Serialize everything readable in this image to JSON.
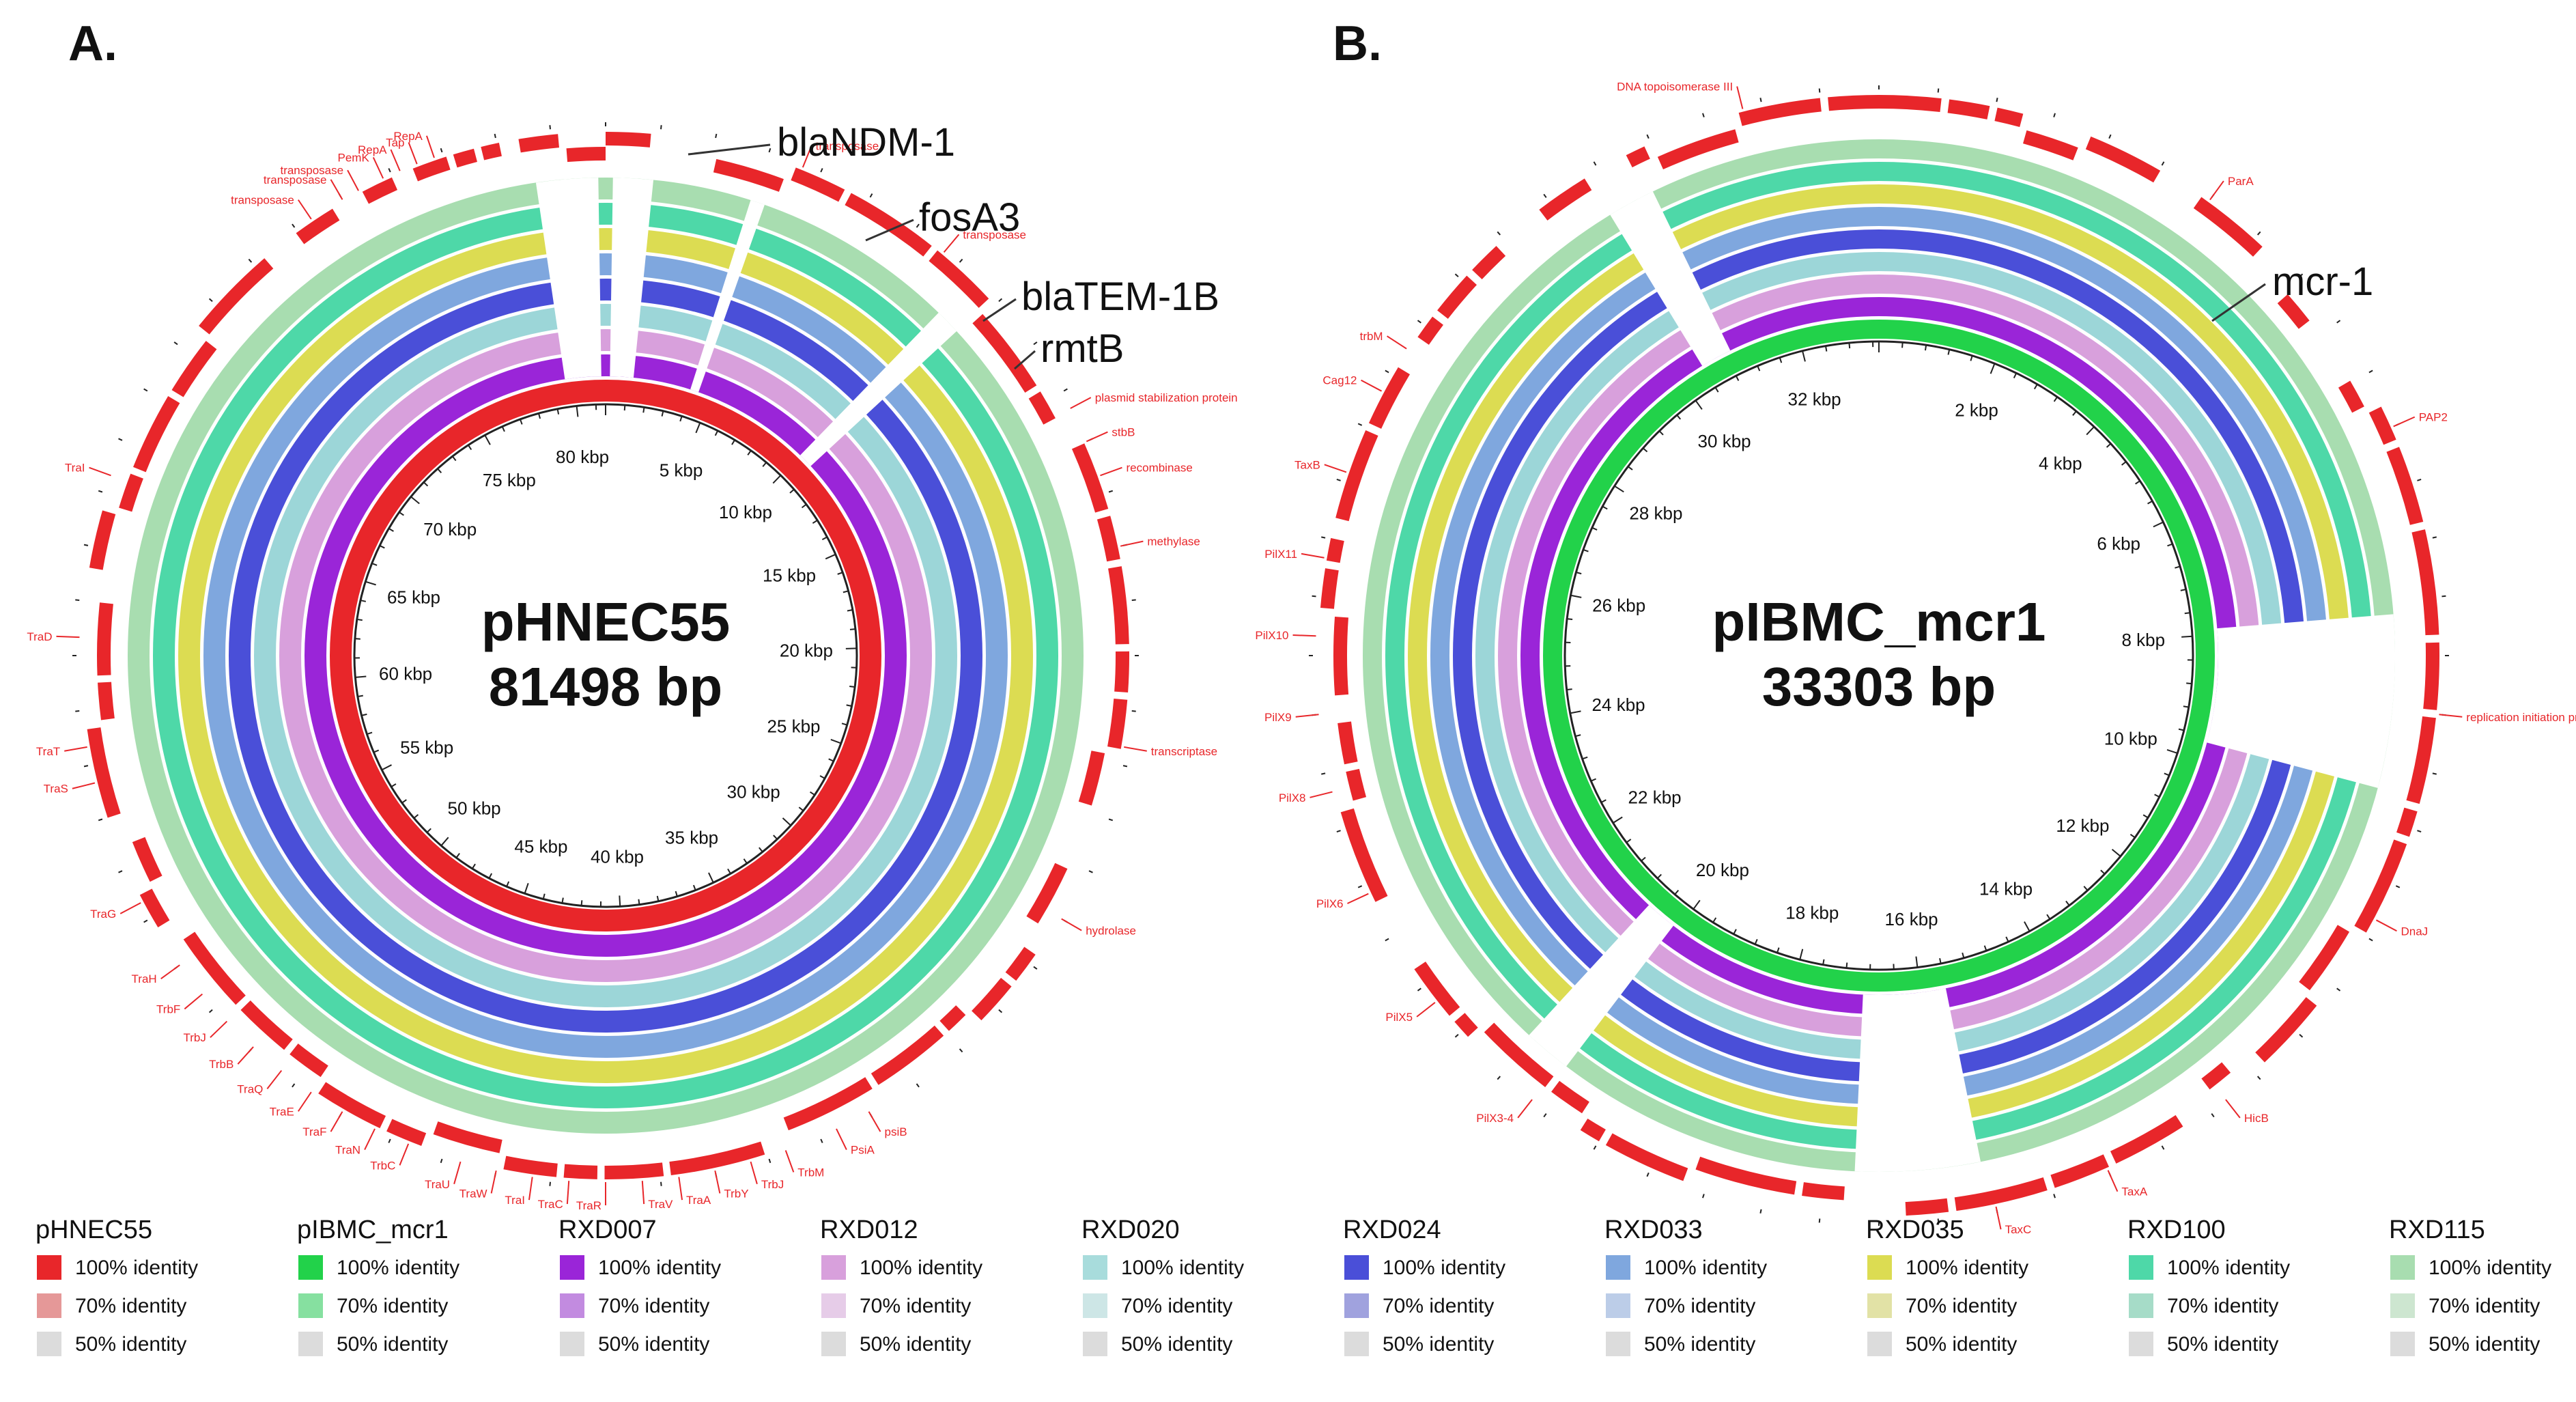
{
  "panels": [
    {
      "letter": "A.",
      "name": "pHNEC55",
      "size_label": "81498 bp",
      "length_bp": 81498,
      "tick_step_kbp": 5,
      "tick_labels": [
        "5 kbp",
        "10 kbp",
        "15 kbp",
        "20 kbp",
        "25 kbp",
        "30 kbp",
        "35 kbp",
        "40 kbp",
        "45 kbp",
        "50 kbp",
        "55 kbp",
        "60 kbp",
        "65 kbp",
        "70 kbp",
        "75 kbp",
        "80 kbp"
      ],
      "rings": [
        "#e8262a",
        "#9a25d8",
        "#d8a0dc",
        "#9cd6d8",
        "#4a4fd8",
        "#7fa7de",
        "#dcdc52",
        "#4ed8a8",
        "#a8ddb0"
      ],
      "gaps_kbp": [
        [
          79.6,
          81.3
        ],
        [
          0.2,
          1.3
        ],
        [
          4.0,
          4.4
        ],
        [
          10.0,
          10.7
        ]
      ],
      "big_labels": [
        "blaNDM-1",
        "fosA3",
        "blaTEM-1B",
        "rmtB"
      ],
      "gene_labels": [
        "transposase",
        "transposase",
        "transposase",
        "PemK",
        "RepA",
        "Tap",
        "RepA",
        "transposase",
        "transposase",
        "plasmid stabilization protein",
        "stbB",
        "recombinase",
        "methylase",
        "transcriptase",
        "hydrolase",
        "psiB",
        "PsiA",
        "TrbM",
        "TrbJ",
        "TrbY",
        "TraA",
        "TraV",
        "TraR",
        "TraC",
        "TraI",
        "TraW",
        "TraU",
        "TrbC",
        "TraN",
        "TraF",
        "TraE",
        "TraQ",
        "TrbB",
        "TrbJ",
        "TrbF",
        "TraH",
        "TraG",
        "TraS",
        "TraT",
        "TraD",
        "TraI"
      ]
    },
    {
      "letter": "B.",
      "name": "pIBMC_mcr1",
      "size_label": "33303 bp",
      "length_bp": 33303,
      "tick_step_kbp": 2,
      "tick_labels": [
        "2 kbp",
        "4 kbp",
        "6 kbp",
        "8 kbp",
        "10 kbp",
        "12 kbp",
        "14 kbp",
        "16 kbp",
        "18 kbp",
        "20 kbp",
        "22 kbp",
        "24 kbp",
        "26 kbp",
        "28 kbp",
        "30 kbp",
        "32 kbp"
      ],
      "rings": [
        "#22d24a",
        "#9a25d8",
        "#d8a0dc",
        "#9cd6d8",
        "#4a4fd8",
        "#7fa7de",
        "#dcdc52",
        "#4ed8a8",
        "#a8ddb0"
      ],
      "gaps_kbp": [
        [
          7.9,
          9.7
        ],
        [
          15.6,
          16.9
        ],
        [
          20.1,
          20.6
        ],
        [
          30.4,
          30.9
        ]
      ],
      "big_labels": [
        "mcr-1"
      ],
      "gene_labels": [
        "DNA topoisomerase III",
        "ParA",
        "trbM",
        "Cag12",
        "TaxB",
        "PilX11",
        "PilX10",
        "PilX9",
        "PilX8",
        "PilX6",
        "PilX5",
        "PilX3-4",
        "TaxC",
        "TaxA",
        "HicB",
        "DnaJ",
        "replication initiation protein",
        "PAP2"
      ]
    }
  ],
  "legend": [
    {
      "name": "pHNEC55",
      "items": [
        {
          "label": "100% identity",
          "color": "#e8262a"
        },
        {
          "label": "70% identity",
          "color": "#e59898"
        },
        {
          "label": "50% identity",
          "color": "#dcdcdc"
        }
      ]
    },
    {
      "name": "pIBMC_mcr1",
      "items": [
        {
          "label": "100% identity",
          "color": "#22d24a"
        },
        {
          "label": "70% identity",
          "color": "#86e0a0"
        },
        {
          "label": "50% identity",
          "color": "#dcdcdc"
        }
      ]
    },
    {
      "name": "RXD007",
      "items": [
        {
          "label": "100% identity",
          "color": "#9a25d8"
        },
        {
          "label": "70% identity",
          "color": "#c28be0"
        },
        {
          "label": "50% identity",
          "color": "#dcdcdc"
        }
      ]
    },
    {
      "name": "RXD012",
      "items": [
        {
          "label": "100% identity",
          "color": "#d8a0dc"
        },
        {
          "label": "70% identity",
          "color": "#e6cce8"
        },
        {
          "label": "50% identity",
          "color": "#dcdcdc"
        }
      ]
    },
    {
      "name": "RXD020",
      "items": [
        {
          "label": "100% identity",
          "color": "#a8dcdc"
        },
        {
          "label": "70% identity",
          "color": "#cde6e6"
        },
        {
          "label": "50% identity",
          "color": "#dcdcdc"
        }
      ]
    },
    {
      "name": "RXD024",
      "items": [
        {
          "label": "100% identity",
          "color": "#4a4fd8"
        },
        {
          "label": "70% identity",
          "color": "#a0a2de"
        },
        {
          "label": "50% identity",
          "color": "#dcdcdc"
        }
      ]
    },
    {
      "name": "RXD033",
      "items": [
        {
          "label": "100% identity",
          "color": "#7fa7de"
        },
        {
          "label": "70% identity",
          "color": "#bccde8"
        },
        {
          "label": "50% identity",
          "color": "#dcdcdc"
        }
      ]
    },
    {
      "name": "RXD035",
      "items": [
        {
          "label": "100% identity",
          "color": "#dcdc52"
        },
        {
          "label": "70% identity",
          "color": "#e2e2a6"
        },
        {
          "label": "50% identity",
          "color": "#dcdcdc"
        }
      ]
    },
    {
      "name": "RXD100",
      "items": [
        {
          "label": "100% identity",
          "color": "#4ed8a8"
        },
        {
          "label": "70% identity",
          "color": "#a6dcc8"
        },
        {
          "label": "50% identity",
          "color": "#dcdcdc"
        }
      ]
    },
    {
      "name": "RXD115",
      "items": [
        {
          "label": "100% identity",
          "color": "#a8ddb0"
        },
        {
          "label": "70% identity",
          "color": "#cde6d0"
        },
        {
          "label": "50% identity",
          "color": "#dcdcdc"
        }
      ]
    }
  ]
}
